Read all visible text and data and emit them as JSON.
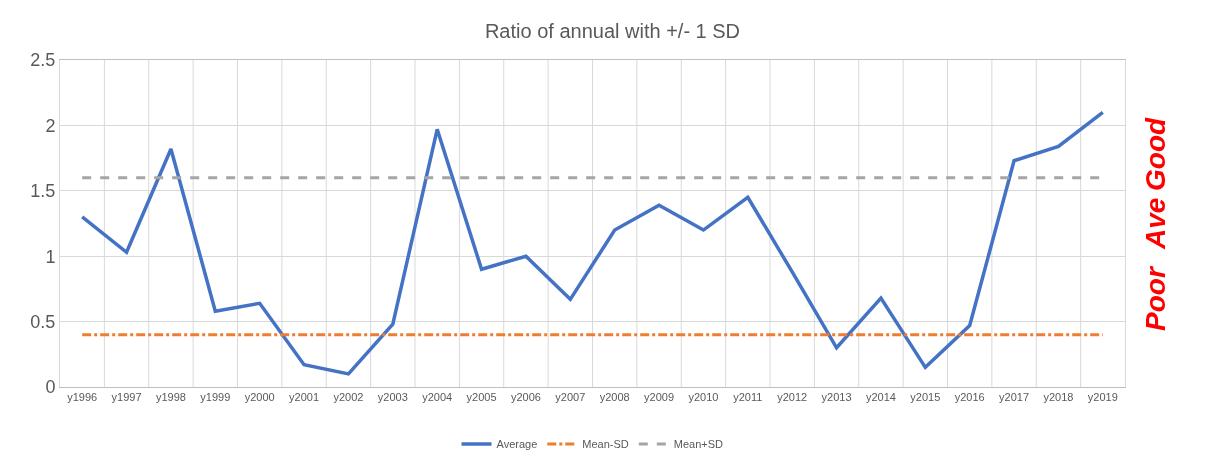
{
  "chart_data": {
    "type": "line",
    "title": "Ratio of annual with +/- 1 SD",
    "categories": [
      "y1996",
      "y1997",
      "y1998",
      "y1999",
      "y2000",
      "y2001",
      "y2002",
      "y2003",
      "y2004",
      "y2005",
      "y2006",
      "y2007",
      "y2008",
      "y2009",
      "y2010",
      "y2011",
      "y2012",
      "y2013",
      "y2014",
      "y2015",
      "y2016",
      "y2017",
      "y2018",
      "y2019"
    ],
    "series": [
      {
        "name": "Average",
        "color": "#4472c4",
        "line_style": "solid",
        "values": [
          1.3,
          1.03,
          1.82,
          0.58,
          0.64,
          0.17,
          0.1,
          0.48,
          1.97,
          0.9,
          1.0,
          0.67,
          1.2,
          1.39,
          1.2,
          1.45,
          0.88,
          0.3,
          0.68,
          0.15,
          0.47,
          1.73,
          1.84,
          2.1
        ]
      },
      {
        "name": "Mean-SD",
        "color": "#ed7d31",
        "line_style": "dashdot",
        "values": [
          0.4,
          0.4,
          0.4,
          0.4,
          0.4,
          0.4,
          0.4,
          0.4,
          0.4,
          0.4,
          0.4,
          0.4,
          0.4,
          0.4,
          0.4,
          0.4,
          0.4,
          0.4,
          0.4,
          0.4,
          0.4,
          0.4,
          0.4,
          0.4
        ]
      },
      {
        "name": "Mean+SD",
        "color": "#a5a5a5",
        "line_style": "dashed",
        "values": [
          1.6,
          1.6,
          1.6,
          1.6,
          1.6,
          1.6,
          1.6,
          1.6,
          1.6,
          1.6,
          1.6,
          1.6,
          1.6,
          1.6,
          1.6,
          1.6,
          1.6,
          1.6,
          1.6,
          1.6,
          1.6,
          1.6,
          1.6,
          1.6
        ]
      }
    ],
    "ylim": [
      0,
      2.5
    ],
    "yticks": [
      0,
      0.5,
      1,
      1.5,
      2,
      2.5
    ],
    "grid": true,
    "legend": "bottom",
    "marker": "none",
    "annotations": [
      "Good",
      "Ave",
      "Poor"
    ]
  }
}
